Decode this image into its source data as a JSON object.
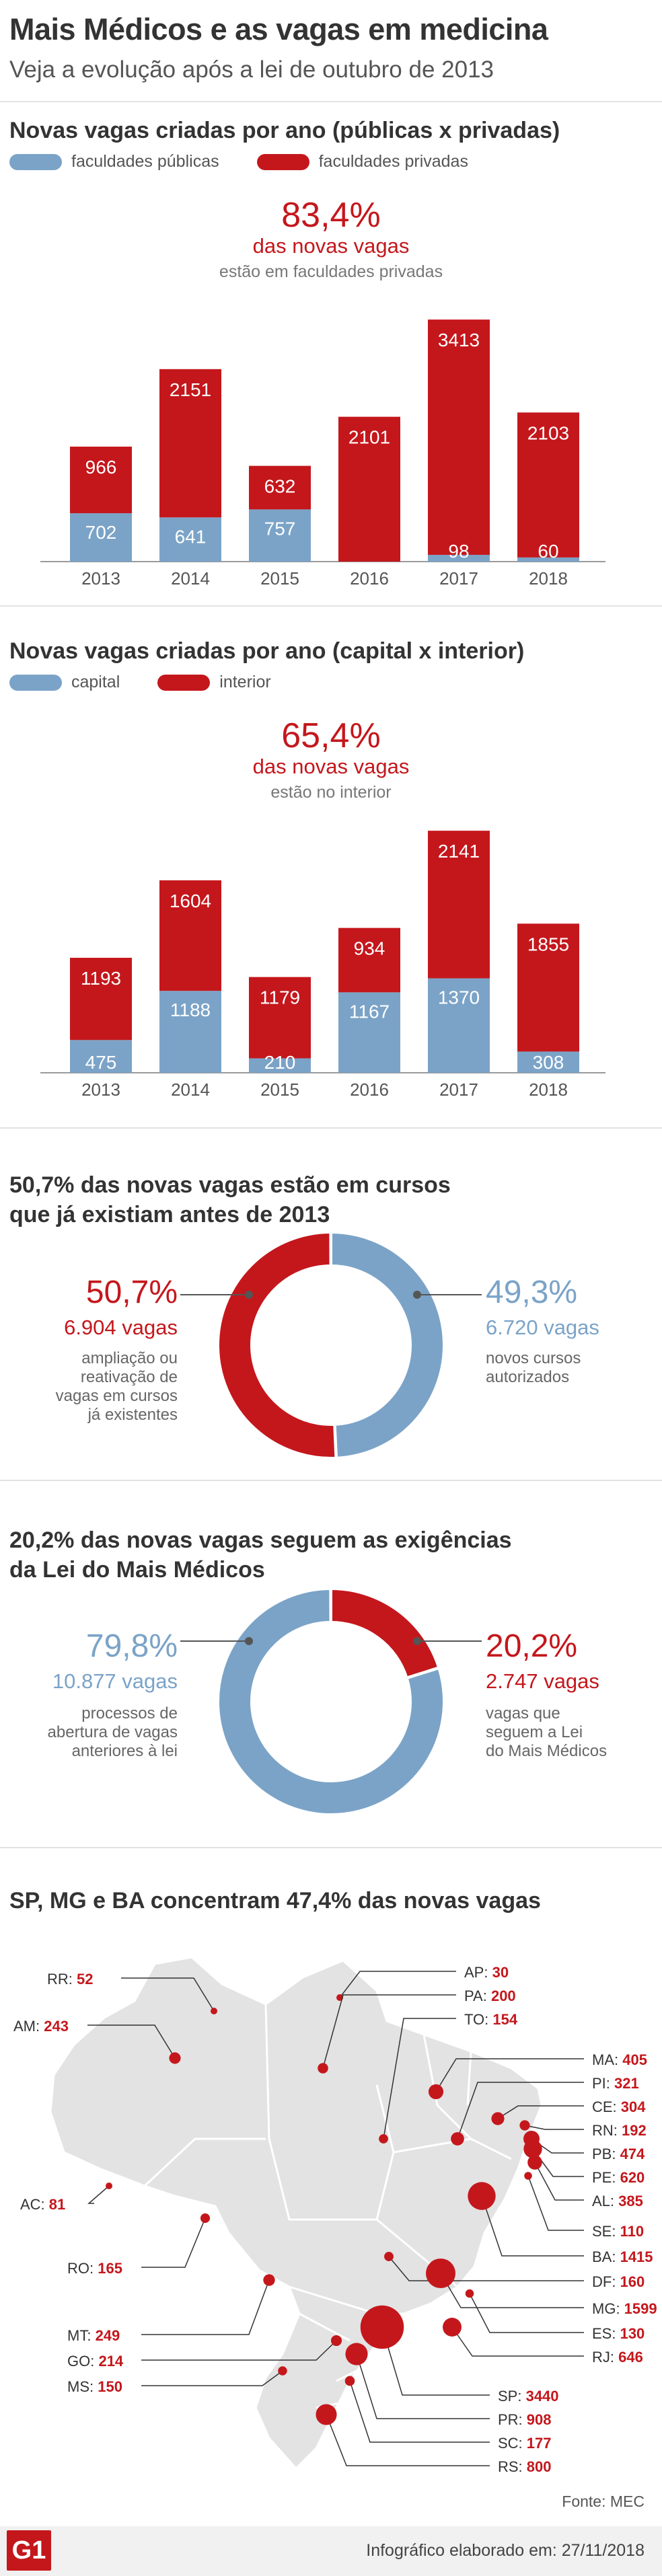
{
  "header": {
    "title": "Mais Médicos e as vagas em medicina",
    "subtitle": "Veja a evolução após a lei de outubro de 2013"
  },
  "colors": {
    "red": "#c4171c",
    "blue": "#7ba3c7",
    "axis": "#9a9a9a",
    "map": "#e3e3e3"
  },
  "section1": {
    "title": "Novas vagas criadas por ano (públicas x privadas)",
    "legend_a": "faculdades públicas",
    "legend_b": "faculdades privadas",
    "highlight_pct": "83,4%",
    "highlight_sub": "das novas vagas",
    "highlight_note": "estão em faculdades privadas"
  },
  "section2": {
    "title": "Novas vagas criadas por ano (capital x interior)",
    "legend_a": "capital",
    "legend_b": "interior",
    "highlight_pct": "65,4%",
    "highlight_sub": "das novas vagas",
    "highlight_note": "estão no interior"
  },
  "section3": {
    "title_line1": "50,7% das novas vagas estão em cursos",
    "title_line2": "que já existiam antes de 2013",
    "left_pct": "50,7%",
    "left_count": "6.904 vagas",
    "left_desc": [
      "ampliação ou",
      "reativação de",
      "vagas em cursos",
      "já existentes"
    ],
    "right_pct": "49,3%",
    "right_count": "6.720 vagas",
    "right_desc": [
      "novos cursos",
      "autorizados"
    ]
  },
  "section4": {
    "title_line1": "20,2% das novas vagas seguem as exigências",
    "title_line2": "da Lei do Mais Médicos",
    "left_pct": "79,8%",
    "left_count": "10.877 vagas",
    "left_desc": [
      "processos de",
      "abertura de vagas",
      "anteriores à lei"
    ],
    "right_pct": "20,2%",
    "right_count": "2.747 vagas",
    "right_desc": [
      "vagas que",
      "seguem a Lei",
      "do Mais Médicos"
    ]
  },
  "section5": {
    "title": "SP, MG e BA concentram 47,4% das novas vagas"
  },
  "footer": {
    "source": "Fonte: MEC",
    "credit": "Infográfico elaborado em: 27/11/2018",
    "logo": "G1"
  },
  "chart_data": [
    {
      "type": "bar",
      "stacked": true,
      "title": "Novas vagas criadas por ano (públicas x privadas)",
      "categories": [
        "2013",
        "2014",
        "2015",
        "2016",
        "2017",
        "2018"
      ],
      "series": [
        {
          "name": "faculdades públicas",
          "values": [
            702,
            641,
            757,
            0,
            98,
            60
          ]
        },
        {
          "name": "faculdades privadas",
          "values": [
            966,
            2151,
            632,
            2101,
            3413,
            2103
          ]
        }
      ]
    },
    {
      "type": "bar",
      "stacked": true,
      "title": "Novas vagas criadas por ano (capital x interior)",
      "categories": [
        "2013",
        "2014",
        "2015",
        "2016",
        "2017",
        "2018"
      ],
      "series": [
        {
          "name": "capital",
          "values": [
            475,
            1188,
            210,
            1167,
            1370,
            308
          ]
        },
        {
          "name": "interior",
          "values": [
            1193,
            1604,
            1179,
            934,
            2141,
            1855
          ]
        }
      ]
    },
    {
      "type": "pie",
      "title": "50,7% das novas vagas estão em cursos que já existiam antes de 2013",
      "labels": [
        "ampliação ou reativação de vagas em cursos já existentes",
        "novos cursos autorizados"
      ],
      "values": [
        50.7,
        49.3
      ]
    },
    {
      "type": "pie",
      "title": "20,2% das novas vagas seguem as exigências da Lei do Mais Médicos",
      "labels": [
        "processos de abertura de vagas anteriores à lei",
        "vagas que seguem a Lei do Mais Médicos"
      ],
      "values": [
        79.8,
        20.2
      ]
    },
    {
      "type": "scatter",
      "title": "SP, MG e BA concentram 47,4% das novas vagas",
      "states": [
        {
          "uf": "RR",
          "value": 52
        },
        {
          "uf": "AM",
          "value": 243
        },
        {
          "uf": "AC",
          "value": 81
        },
        {
          "uf": "RO",
          "value": 165
        },
        {
          "uf": "MT",
          "value": 249
        },
        {
          "uf": "GO",
          "value": 214
        },
        {
          "uf": "MS",
          "value": 150
        },
        {
          "uf": "AP",
          "value": 30
        },
        {
          "uf": "PA",
          "value": 200
        },
        {
          "uf": "TO",
          "value": 154
        },
        {
          "uf": "MA",
          "value": 405
        },
        {
          "uf": "PI",
          "value": 321
        },
        {
          "uf": "CE",
          "value": 304
        },
        {
          "uf": "RN",
          "value": 192
        },
        {
          "uf": "PB",
          "value": 474
        },
        {
          "uf": "PE",
          "value": 620
        },
        {
          "uf": "AL",
          "value": 385
        },
        {
          "uf": "SE",
          "value": 110
        },
        {
          "uf": "BA",
          "value": 1415
        },
        {
          "uf": "DF",
          "value": 160
        },
        {
          "uf": "MG",
          "value": 1599
        },
        {
          "uf": "ES",
          "value": 130
        },
        {
          "uf": "RJ",
          "value": 646
        },
        {
          "uf": "SP",
          "value": 3440
        },
        {
          "uf": "PR",
          "value": 908
        },
        {
          "uf": "SC",
          "value": 177
        },
        {
          "uf": "RS",
          "value": 800
        }
      ]
    }
  ]
}
